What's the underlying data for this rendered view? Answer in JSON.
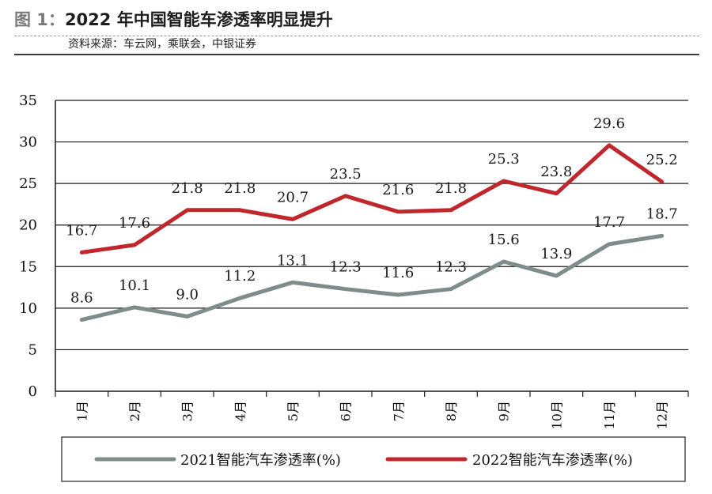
{
  "header": {
    "figure_label": "图 1：",
    "title": "2022 年中国智能车渗透率明显提升",
    "source": "资料来源：车云网，乘联会，中银证券"
  },
  "chart_data": {
    "type": "line",
    "categories": [
      "1月",
      "2月",
      "3月",
      "4月",
      "5月",
      "6月",
      "7月",
      "8月",
      "9月",
      "10月",
      "11月",
      "12月"
    ],
    "series": [
      {
        "name": "2021智能汽车渗透率(%)",
        "color": "#7f8c8c",
        "values": [
          8.6,
          10.1,
          9.0,
          11.2,
          13.1,
          12.3,
          11.6,
          12.3,
          15.6,
          13.9,
          17.7,
          18.7
        ],
        "labels": [
          "8.6",
          "10.1",
          "9.0",
          "11.2",
          "13.1",
          "12.3",
          "11.6",
          "12.3",
          "15.6",
          "13.9",
          "17.7",
          "18.7"
        ]
      },
      {
        "name": "2022智能汽车渗透率(%)",
        "color": "#c0272d",
        "values": [
          16.7,
          17.6,
          21.8,
          21.8,
          20.7,
          23.5,
          21.6,
          21.8,
          25.3,
          23.8,
          29.6,
          25.2
        ],
        "labels": [
          "16.7",
          "17.6",
          "21.8",
          "21.8",
          "20.7",
          "23.5",
          "21.6",
          "21.8",
          "25.3",
          "23.8",
          "29.6",
          "25.2"
        ]
      }
    ],
    "ylim": [
      0,
      35
    ],
    "yticks": [
      "0",
      "5",
      "10",
      "15",
      "20",
      "25",
      "30",
      "35"
    ],
    "grid": true,
    "legend_position": "bottom"
  }
}
